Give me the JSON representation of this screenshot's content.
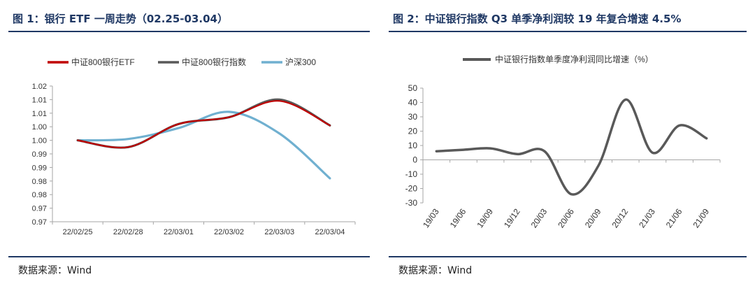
{
  "panels": [
    {
      "title": "图 1：银行 ETF 一周走势（02.25-03.04）",
      "source": "数据来源：Wind"
    },
    {
      "title": "图 2：中证银行指数 Q3 单季净利润较 19 年复合增速 4.5%",
      "source": "数据来源：Wind"
    }
  ],
  "chart_data": [
    {
      "type": "line",
      "title": "",
      "categories": [
        "22/02/25",
        "22/02/28",
        "22/03/01",
        "22/03/02",
        "22/03/03",
        "22/03/04"
      ],
      "ylim": [
        0.97,
        1.02
      ],
      "yticks": [
        "1.02",
        "1.01",
        "1.01",
        "1.00",
        "1.00",
        "0.99",
        "0.99",
        "0.98",
        "0.98",
        "0.97",
        "0.97"
      ],
      "ytick_values": [
        1.02,
        1.015,
        1.01,
        1.005,
        1.0,
        0.995,
        0.99,
        0.985,
        0.98,
        0.975,
        0.97
      ],
      "legend_position": "top",
      "series": [
        {
          "name": "中证800银行ETF",
          "color": "#c00000",
          "values": [
            1.0,
            0.9975,
            1.006,
            1.0085,
            1.0145,
            1.0055
          ]
        },
        {
          "name": "中证800银行指数",
          "color": "#595959",
          "values": [
            1.0,
            0.9975,
            1.006,
            1.0085,
            1.015,
            1.0055
          ]
        },
        {
          "name": "沪深300",
          "color": "#70b0d0",
          "values": [
            1.0,
            1.0005,
            1.0045,
            1.0105,
            1.0025,
            0.986
          ]
        }
      ]
    },
    {
      "type": "line",
      "title": "",
      "categories": [
        "19/03",
        "19/06",
        "19/09",
        "19/12",
        "20/03",
        "20/06",
        "20/09",
        "20/12",
        "21/03",
        "21/06",
        "21/09"
      ],
      "ylim": [
        -30,
        50
      ],
      "yticks": [
        50,
        40,
        30,
        20,
        10,
        0,
        -10,
        -20,
        -30
      ],
      "legend_position": "top",
      "series": [
        {
          "name": "中证银行指数单季度净利润同比增速（%）",
          "color": "#595959",
          "values": [
            6,
            7,
            8,
            4,
            6,
            -24,
            -4,
            42,
            5,
            24,
            15
          ]
        }
      ]
    }
  ]
}
